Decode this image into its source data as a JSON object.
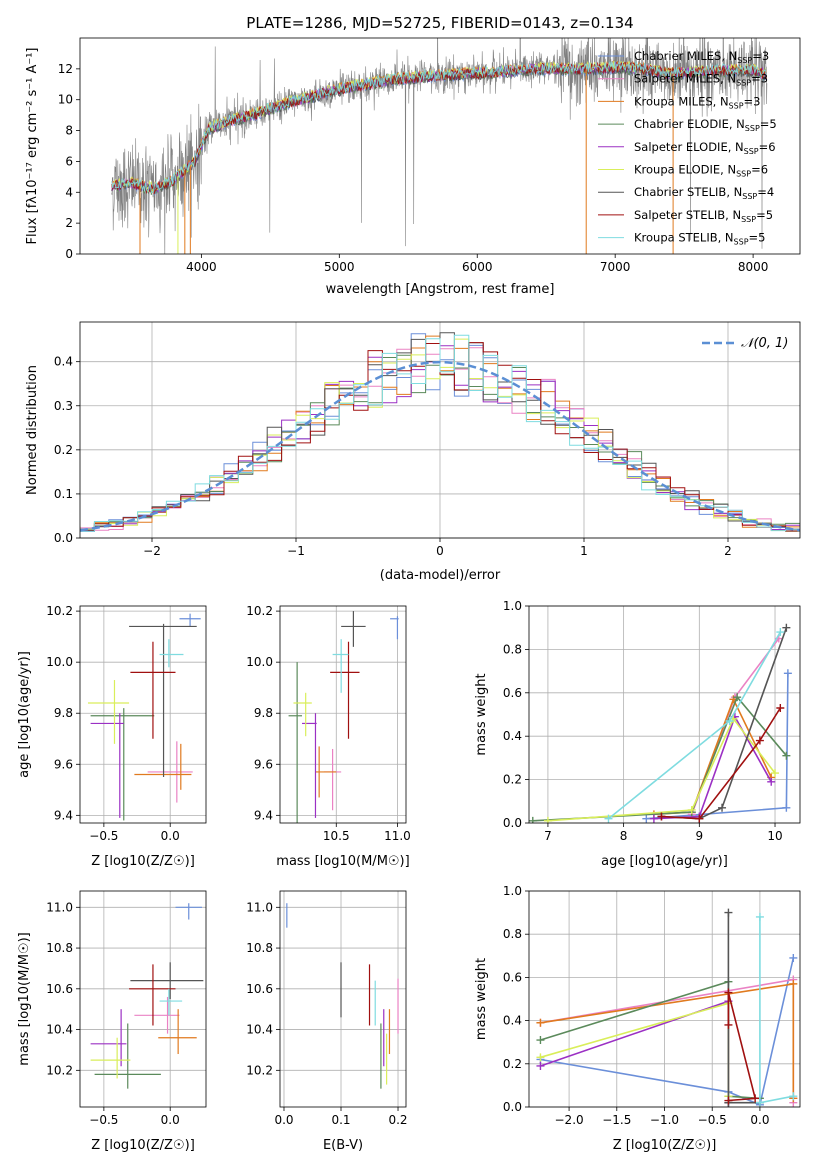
{
  "figure_title": "PLATE=1286, MJD=52725, FIBERID=0143, z=0.134",
  "colors": {
    "Chabrier MILES": "#6b8fd9",
    "Salpeter MILES": "#ea82c4",
    "Kroupa MILES": "#e07a1f",
    "Chabrier ELODIE": "#5b8a5b",
    "Salpeter ELODIE": "#9b30c4",
    "Kroupa ELODIE": "#d9ee5a",
    "Chabrier STELIB": "#555555",
    "Salpeter STELIB": "#a01010",
    "Kroupa STELIB": "#7fdce0",
    "observed": "#808080",
    "normal": "#5b8fd4"
  },
  "chart_data": [
    {
      "id": "spectrum",
      "type": "line",
      "title": "PLATE=1286, MJD=52725, FIBERID=0143, z=0.134",
      "xlabel": "wavelength [Angstrom, rest frame]",
      "ylabel": "Flux [fλ10⁻¹⁷ erg cm⁻² s⁻¹ A⁻¹]",
      "xlim": [
        3120,
        8340
      ],
      "ylim": [
        0,
        14
      ],
      "xticks": [
        4000,
        5000,
        6000,
        7000,
        8000
      ],
      "yticks": [
        0,
        2,
        4,
        6,
        8,
        10,
        12
      ],
      "legend_position": "upper right",
      "legend": [
        "Chabrier MILES, N_SSP=3",
        "Salpeter MILES, N_SSP=3",
        "Kroupa MILES, N_SSP=3",
        "Chabrier ELODIE, N_SSP=5",
        "Salpeter ELODIE, N_SSP=6",
        "Kroupa ELODIE, N_SSP=6",
        "Chabrier STELIB, N_SSP=4",
        "Salpeter STELIB, N_SSP=5",
        "Kroupa STELIB, N_SSP=5"
      ],
      "continuum_x": [
        3350,
        3500,
        3650,
        3800,
        3950,
        4050,
        4200,
        4400,
        4600,
        4800,
        5000,
        5200,
        5400,
        5600,
        5800,
        6000,
        6200,
        6400,
        6600,
        6800,
        7000,
        7200,
        7400,
        7600,
        7800,
        8000,
        8100
      ],
      "continuum_y": [
        4.4,
        4.6,
        4.2,
        4.8,
        6.0,
        8.1,
        8.6,
        9.1,
        9.7,
        10.2,
        10.7,
        11.0,
        11.3,
        11.5,
        11.6,
        11.7,
        11.8,
        12.0,
        12.0,
        12.0,
        12.1,
        12.0,
        11.7,
        11.8,
        11.9,
        11.9,
        11.6
      ],
      "grid": false
    },
    {
      "id": "residuals",
      "type": "histogram",
      "xlabel": "(data-model)/error",
      "ylabel": "Normed distribution",
      "xlim": [
        -2.5,
        2.5
      ],
      "ylim": [
        0,
        0.49
      ],
      "xticks": [
        -2,
        -1,
        0,
        1,
        2
      ],
      "yticks": [
        0.0,
        0.1,
        0.2,
        0.3,
        0.4
      ],
      "legend": [
        "𝒩(0, 1)"
      ],
      "legend_position": "upper right",
      "bin_width": 0.1,
      "grid": true
    },
    {
      "id": "age_vs_Z",
      "type": "errorbar",
      "xlabel": "Z [log10(Z/Z☉)]",
      "ylabel": "age  [log10(age/yr)]",
      "xlim": [
        -0.68,
        0.27
      ],
      "ylim": [
        9.37,
        10.22
      ],
      "xticks": [
        -0.5,
        0.0
      ],
      "yticks": [
        9.4,
        9.6,
        9.8,
        10.0,
        10.2
      ],
      "points": [
        {
          "series": "Chabrier MILES",
          "x": 0.15,
          "xerr": [
            0.08,
            0.08
          ],
          "y": 10.17,
          "yerr": [
            0.03,
            0.02
          ]
        },
        {
          "series": "Salpeter MILES",
          "x": 0.05,
          "xerr": [
            0.22,
            0.12
          ],
          "y": 9.57,
          "yerr": [
            0.12,
            0.12
          ]
        },
        {
          "series": "Kroupa MILES",
          "x": 0.08,
          "xerr": [
            0.35,
            0.08
          ],
          "y": 9.56,
          "yerr": [
            0.06,
            0.12
          ]
        },
        {
          "series": "Chabrier ELODIE",
          "x": -0.35,
          "xerr": [
            0.25,
            0.23
          ],
          "y": 9.79,
          "yerr": [
            0.41,
            0.03
          ]
        },
        {
          "series": "Salpeter ELODIE",
          "x": -0.38,
          "xerr": [
            0.22,
            0.03
          ],
          "y": 9.76,
          "yerr": [
            0.37,
            0.04
          ]
        },
        {
          "series": "Kroupa ELODIE",
          "x": -0.42,
          "xerr": [
            0.2,
            0.11
          ],
          "y": 9.84,
          "yerr": [
            0.16,
            0.09
          ]
        },
        {
          "series": "Chabrier STELIB",
          "x": -0.05,
          "xerr": [
            0.26,
            0.25
          ],
          "y": 10.14,
          "yerr": [
            0.59,
            0.01
          ]
        },
        {
          "series": "Salpeter STELIB",
          "x": -0.13,
          "xerr": [
            0.17,
            0.17
          ],
          "y": 9.96,
          "yerr": [
            0.26,
            0.12
          ]
        },
        {
          "series": "Kroupa STELIB",
          "x": -0.01,
          "xerr": [
            0.07,
            0.11
          ],
          "y": 10.03,
          "yerr": [
            0.05,
            0.06
          ]
        }
      ],
      "grid": true
    },
    {
      "id": "age_vs_mass",
      "type": "errorbar",
      "xlabel": "mass [log10(M/M☉)]",
      "ylabel": "",
      "xlim": [
        10.04,
        11.07
      ],
      "ylim": [
        9.37,
        10.22
      ],
      "xticks": [
        10.5,
        11.0
      ],
      "yticks": [
        9.4,
        9.6,
        9.8,
        10.0,
        10.2
      ],
      "points": [
        {
          "series": "Chabrier MILES",
          "x": 11.0,
          "xerr": [
            0.06,
            0.01
          ],
          "y": 10.17,
          "yerr": [
            0.08,
            0.01
          ]
        },
        {
          "series": "Salpeter MILES",
          "x": 10.47,
          "xerr": [
            0.07,
            0.07
          ],
          "y": 9.57,
          "yerr": [
            0.15,
            0.09
          ]
        },
        {
          "series": "Kroupa MILES",
          "x": 10.36,
          "xerr": [
            0.03,
            0.14
          ],
          "y": 9.57,
          "yerr": [
            0.1,
            0.1
          ]
        },
        {
          "series": "Chabrier ELODIE",
          "x": 10.18,
          "xerr": [
            0.07,
            0.04
          ],
          "y": 9.79,
          "yerr": [
            0.42,
            0.21
          ]
        },
        {
          "series": "Salpeter ELODIE",
          "x": 10.33,
          "xerr": [
            0.11,
            0.01
          ],
          "y": 9.76,
          "yerr": [
            0.37,
            0.04
          ]
        },
        {
          "series": "Kroupa ELODIE",
          "x": 10.25,
          "xerr": [
            0.1,
            0.05
          ],
          "y": 9.84,
          "yerr": [
            0.13,
            0.04
          ]
        },
        {
          "series": "Chabrier STELIB",
          "x": 10.64,
          "xerr": [
            0.1,
            0.1
          ],
          "y": 10.14,
          "yerr": [
            0.08,
            0.06
          ]
        },
        {
          "series": "Salpeter STELIB",
          "x": 10.6,
          "xerr": [
            0.15,
            0.09
          ],
          "y": 9.96,
          "yerr": [
            0.26,
            0.12
          ]
        },
        {
          "series": "Kroupa STELIB",
          "x": 10.54,
          "xerr": [
            0.07,
            0.06
          ],
          "y": 10.03,
          "yerr": [
            0.15,
            0.06
          ]
        }
      ],
      "grid": true
    },
    {
      "id": "massweight_vs_age",
      "type": "line",
      "xlabel": "age  [log10(age/yr)]",
      "ylabel": "mass weight",
      "xlim": [
        6.75,
        10.33
      ],
      "ylim": [
        0,
        1
      ],
      "xticks": [
        7,
        8,
        9,
        10
      ],
      "yticks": [
        0.0,
        0.2,
        0.4,
        0.6,
        0.8,
        1.0
      ],
      "series": [
        {
          "name": "Chabrier MILES",
          "x": [
            8.3,
            10.15,
            10.17
          ],
          "y": [
            0.02,
            0.07,
            0.69
          ]
        },
        {
          "name": "Salpeter MILES",
          "x": [
            8.9,
            9.47,
            10.05
          ],
          "y": [
            0.04,
            0.58,
            0.85
          ]
        },
        {
          "name": "Kroupa MILES",
          "x": [
            8.4,
            8.9,
            9.45,
            9.95
          ],
          "y": [
            0.04,
            0.05,
            0.57,
            0.21
          ]
        },
        {
          "name": "Chabrier ELODIE",
          "x": [
            6.8,
            8.9,
            9.5,
            10.15
          ],
          "y": [
            0.01,
            0.05,
            0.58,
            0.31
          ]
        },
        {
          "name": "Salpeter ELODIE",
          "x": [
            8.4,
            9.0,
            9.47,
            9.95
          ],
          "y": [
            0.02,
            0.03,
            0.49,
            0.19
          ]
        },
        {
          "name": "Kroupa ELODIE",
          "x": [
            7.0,
            8.9,
            9.45,
            10.0
          ],
          "y": [
            0.01,
            0.06,
            0.48,
            0.23
          ]
        },
        {
          "name": "Chabrier STELIB",
          "x": [
            8.5,
            9.0,
            9.3,
            10.15
          ],
          "y": [
            0.03,
            0.02,
            0.07,
            0.9
          ]
        },
        {
          "name": "Salpeter STELIB",
          "x": [
            8.5,
            9.0,
            9.8,
            10.07
          ],
          "y": [
            0.03,
            0.02,
            0.38,
            0.53
          ]
        },
        {
          "name": "Kroupa STELIB",
          "x": [
            7.8,
            9.4,
            10.07
          ],
          "y": [
            0.02,
            0.47,
            0.88
          ]
        }
      ],
      "grid": true
    },
    {
      "id": "mass_vs_Z",
      "type": "errorbar",
      "xlabel": "Z [log10(Z/Z☉)]",
      "ylabel": "mass [log10(M/M☉)]",
      "xlim": [
        -0.68,
        0.27
      ],
      "ylim": [
        10.02,
        11.08
      ],
      "xticks": [
        -0.5,
        0.0
      ],
      "yticks": [
        10.2,
        10.4,
        10.6,
        10.8,
        11.0
      ],
      "points": [
        {
          "series": "Chabrier MILES",
          "x": 0.14,
          "xerr": [
            0.1,
            0.1
          ],
          "y": 11.0,
          "yerr": [
            0.06,
            0.02
          ]
        },
        {
          "series": "Salpeter MILES",
          "x": -0.02,
          "xerr": [
            0.25,
            0.09
          ],
          "y": 10.47,
          "yerr": [
            0.09,
            0.09
          ]
        },
        {
          "series": "Kroupa MILES",
          "x": 0.06,
          "xerr": [
            0.15,
            0.14
          ],
          "y": 10.36,
          "yerr": [
            0.08,
            0.14
          ]
        },
        {
          "series": "Chabrier ELODIE",
          "x": -0.32,
          "xerr": [
            0.25,
            0.25
          ],
          "y": 10.18,
          "yerr": [
            0.07,
            0.25
          ]
        },
        {
          "series": "Salpeter ELODIE",
          "x": -0.37,
          "xerr": [
            0.23,
            0.04
          ],
          "y": 10.33,
          "yerr": [
            0.11,
            0.17
          ]
        },
        {
          "series": "Kroupa ELODIE",
          "x": -0.4,
          "xerr": [
            0.2,
            0.1
          ],
          "y": 10.25,
          "yerr": [
            0.09,
            0.11
          ]
        },
        {
          "series": "Chabrier STELIB",
          "x": 0.0,
          "xerr": [
            0.3,
            0.25
          ],
          "y": 10.64,
          "yerr": [
            0.09,
            0.09
          ]
        },
        {
          "series": "Salpeter STELIB",
          "x": -0.13,
          "xerr": [
            0.18,
            0.17
          ],
          "y": 10.6,
          "yerr": [
            0.18,
            0.12
          ]
        },
        {
          "series": "Kroupa STELIB",
          "x": -0.01,
          "xerr": [
            0.07,
            0.1
          ],
          "y": 10.54,
          "yerr": [
            0.07,
            0.06
          ]
        }
      ],
      "grid": true
    },
    {
      "id": "mass_vs_ebv",
      "type": "errorbar",
      "xlabel": "E(B-V)",
      "ylabel": "",
      "xlim": [
        -0.007,
        0.214
      ],
      "ylim": [
        10.02,
        11.08
      ],
      "xticks": [
        0.0,
        0.1,
        0.2
      ],
      "yticks": [
        10.2,
        10.4,
        10.6,
        10.8,
        11.0
      ],
      "points": [
        {
          "series": "Chabrier MILES",
          "x": 0.005,
          "y": 11.0,
          "yerr": [
            0.1,
            0.02
          ]
        },
        {
          "series": "Salpeter MILES",
          "x": 0.2,
          "y": 10.47,
          "yerr": [
            0.09,
            0.18
          ]
        },
        {
          "series": "Kroupa MILES",
          "x": 0.185,
          "y": 10.36,
          "yerr": [
            0.08,
            0.14
          ]
        },
        {
          "series": "Chabrier ELODIE",
          "x": 0.17,
          "y": 10.18,
          "yerr": [
            0.07,
            0.25
          ]
        },
        {
          "series": "Salpeter ELODIE",
          "x": 0.175,
          "y": 10.33,
          "yerr": [
            0.11,
            0.17
          ]
        },
        {
          "series": "Kroupa ELODIE",
          "x": 0.18,
          "y": 10.25,
          "yerr": [
            0.12,
            0.13
          ]
        },
        {
          "series": "Chabrier STELIB",
          "x": 0.1,
          "y": 10.64,
          "yerr": [
            0.18,
            0.09
          ]
        },
        {
          "series": "Salpeter STELIB",
          "x": 0.15,
          "y": 10.6,
          "yerr": [
            0.18,
            0.12
          ]
        },
        {
          "series": "Kroupa STELIB",
          "x": 0.16,
          "y": 10.54,
          "yerr": [
            0.12,
            0.1
          ]
        }
      ],
      "grid": true
    },
    {
      "id": "massweight_vs_Z",
      "type": "line",
      "xlabel": "Z [log10(Z/Z☉)]",
      "ylabel": "mass weight",
      "xlim": [
        -2.42,
        0.42
      ],
      "ylim": [
        0,
        1
      ],
      "xticks": [
        -2.0,
        -1.5,
        -1.0,
        -0.5,
        0.0
      ],
      "yticks": [
        0.0,
        0.2,
        0.4,
        0.6,
        0.8,
        1.0
      ],
      "series": [
        {
          "name": "Chabrier MILES",
          "x": [
            -2.3,
            -0.33,
            0.0,
            0.35
          ],
          "y": [
            0.22,
            0.07,
            0.01,
            0.69
          ]
        },
        {
          "name": "Salpeter MILES",
          "x": [
            -2.3,
            0.35,
            0.35,
            0.35
          ],
          "y": [
            0.39,
            0.59,
            0.04,
            0.02
          ]
        },
        {
          "name": "Kroupa MILES",
          "x": [
            -2.3,
            0.35,
            0.35
          ],
          "y": [
            0.39,
            0.57,
            0.04
          ]
        },
        {
          "name": "Chabrier ELODIE",
          "x": [
            -2.3,
            -0.33,
            -0.33,
            0.0
          ],
          "y": [
            0.31,
            0.58,
            0.05,
            0.04
          ]
        },
        {
          "name": "Salpeter ELODIE",
          "x": [
            -2.3,
            -0.33,
            -0.33
          ],
          "y": [
            0.19,
            0.49,
            0.02
          ]
        },
        {
          "name": "Kroupa ELODIE",
          "x": [
            -2.3,
            -0.33,
            -0.33
          ],
          "y": [
            0.23,
            0.48,
            0.05
          ]
        },
        {
          "name": "Chabrier STELIB",
          "x": [
            -0.33,
            -0.33,
            -0.33,
            0.0
          ],
          "y": [
            0.9,
            0.02,
            0.02,
            0.02
          ]
        },
        {
          "name": "Salpeter STELIB",
          "x": [
            -0.33,
            -0.05,
            -0.33,
            -0.33
          ],
          "y": [
            0.03,
            0.04,
            0.53,
            0.38
          ]
        },
        {
          "name": "Kroupa STELIB",
          "x": [
            0.0,
            0.0,
            0.35
          ],
          "y": [
            0.88,
            0.02,
            0.05
          ]
        }
      ],
      "grid": true
    }
  ]
}
